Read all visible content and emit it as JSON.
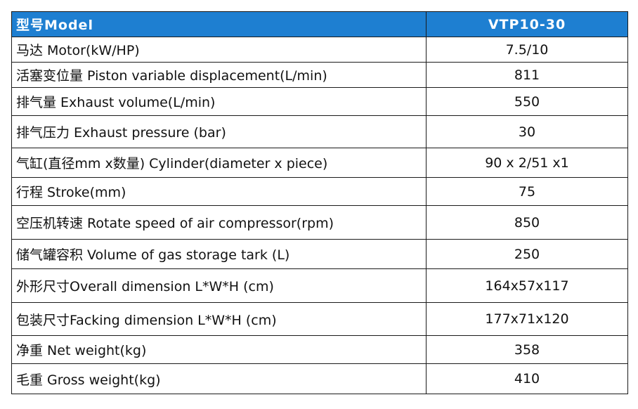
{
  "table": {
    "header": {
      "label": "型号Model",
      "value": "VTP10-30",
      "background": "#1e7fd1"
    },
    "rows": [
      {
        "label": "马达 Motor(kW/HP)",
        "value": "7.5/10"
      },
      {
        "label": "活塞变位量 Piston variable displacement(L/min)",
        "value": "811"
      },
      {
        "label": "排气量  Exhaust volume(L/min)",
        "value": "550"
      },
      {
        "label": "排气压力 Exhaust pressure (bar)",
        "value": "30"
      },
      {
        "label": "气缸(直径mm x数量) Cylinder(diameter x piece)",
        "value": "90 x 2/51 x1"
      },
      {
        "label": "行程 Stroke(mm)",
        "value": "75"
      },
      {
        "label": "空压机转速 Rotate speed of air compressor(rpm)",
        "value": "850"
      },
      {
        "label": "储气罐容积 Volume of gas storage tark (L)",
        "value": "250"
      },
      {
        "label": "外形尺寸Overall dimension L*W*H (cm)",
        "value": "164x57x117"
      },
      {
        "label": "包装尺寸Facking dimension L*W*H (cm)",
        "value": "177x71x120"
      },
      {
        "label": "净重 Net weight(kg)",
        "value": "358"
      },
      {
        "label": "毛重 Gross weight(kg)",
        "value": "410"
      }
    ]
  }
}
